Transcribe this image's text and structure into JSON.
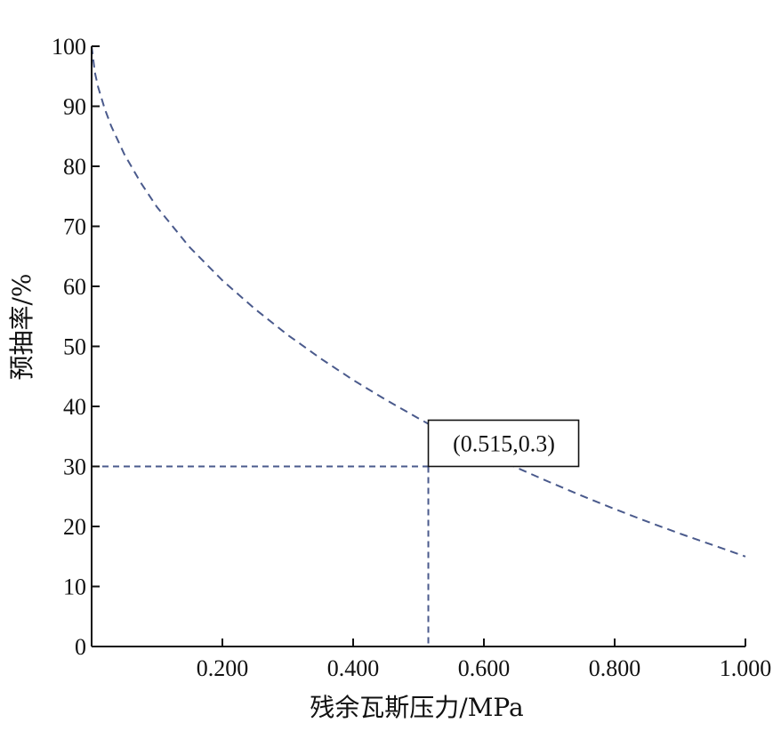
{
  "chart_data": {
    "type": "line",
    "title": "",
    "xlabel": "残余瓦斯压力/MPa",
    "ylabel": "预抽率/%",
    "xlim": [
      0,
      1.0
    ],
    "ylim": [
      0,
      100
    ],
    "x_ticks": [
      0.2,
      0.4,
      0.6,
      0.8,
      1.0
    ],
    "x_tick_labels": [
      "0.200",
      "0.400",
      "0.600",
      "0.800",
      "1.000"
    ],
    "y_ticks": [
      0,
      10,
      20,
      30,
      40,
      50,
      60,
      70,
      80,
      90,
      100
    ],
    "y_tick_labels": [
      "0",
      "10",
      "20",
      "30",
      "40",
      "50",
      "60",
      "70",
      "80",
      "90",
      "100"
    ],
    "grid": false,
    "series": [
      {
        "line_style": "dashed",
        "color": "#4a5a8c",
        "x": [
          0.0,
          0.005,
          0.01,
          0.02,
          0.03,
          0.05,
          0.075,
          0.1,
          0.15,
          0.2,
          0.25,
          0.3,
          0.35,
          0.4,
          0.45,
          0.5,
          0.515,
          0.55,
          0.6,
          0.65,
          0.7,
          0.75,
          0.8,
          0.85,
          0.9,
          0.95,
          1.0
        ],
        "y": [
          100,
          95.6,
          93.2,
          89.6,
          86.7,
          82.0,
          77.3,
          73.2,
          66.5,
          61.0,
          56.2,
          51.9,
          48.0,
          44.4,
          41.1,
          38.0,
          37.1,
          35.1,
          32.3,
          29.8,
          27.4,
          25.1,
          22.9,
          20.8,
          18.8,
          16.9,
          15.0
        ]
      }
    ],
    "reference_point": {
      "x": 0.515,
      "y": 30,
      "label": "(0.515,0.3)",
      "guide_color": "#4a5a8c"
    }
  }
}
